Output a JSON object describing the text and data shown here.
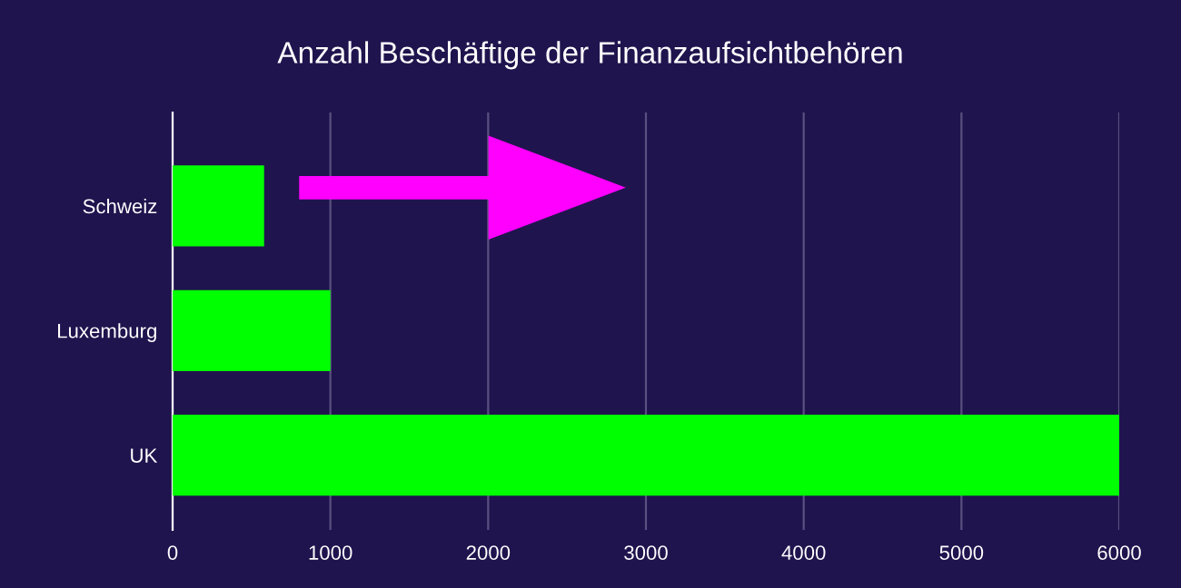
{
  "chart_data": {
    "type": "bar",
    "orientation": "horizontal",
    "title": "Anzahl Beschäftige der Finanzaufsichtbehören",
    "categories": [
      "Schweiz",
      "Luxemburg",
      "UK"
    ],
    "values": [
      580,
      1000,
      6000
    ],
    "color": "#00ff00",
    "xlim": [
      0,
      6000
    ],
    "xticks": [
      0,
      1000,
      2000,
      3000,
      4000,
      5000,
      6000
    ],
    "grid": "x"
  }
}
